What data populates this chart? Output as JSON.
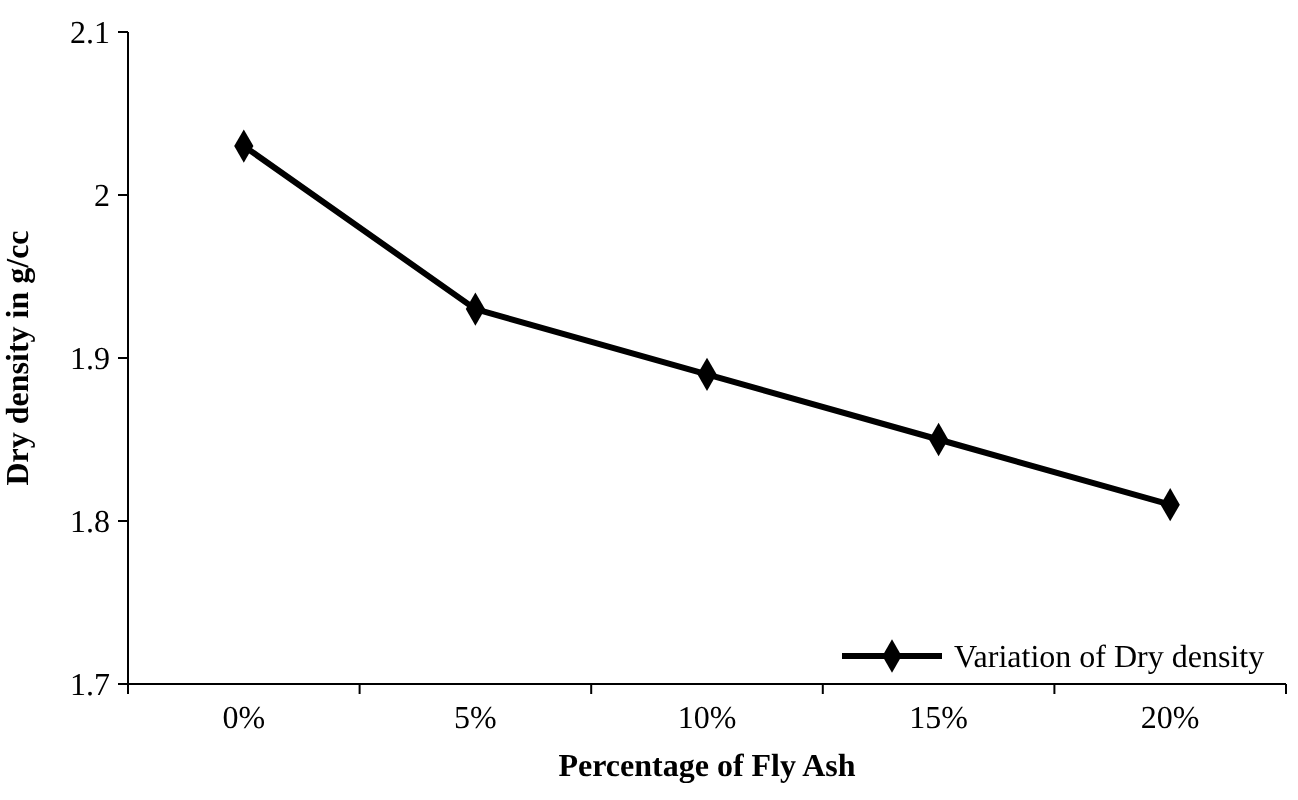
{
  "chart_data": {
    "type": "line",
    "xlabel": "Percentage of Fly Ash",
    "ylabel": "Dry density in g/cc",
    "categories": [
      "0%",
      "5%",
      "10%",
      "15%",
      "20%"
    ],
    "series": [
      {
        "name": "Variation of Dry density",
        "color": "#000000",
        "values": [
          2.03,
          1.93,
          1.89,
          1.85,
          1.81
        ]
      }
    ],
    "ylim": [
      1.7,
      2.1
    ],
    "yticks": [
      1.7,
      1.8,
      1.9,
      {
        "value": 2,
        "label": "2"
      },
      2.1
    ],
    "grid": false,
    "legend": "bottom right",
    "marker": "diamond",
    "line_style": "solid"
  }
}
